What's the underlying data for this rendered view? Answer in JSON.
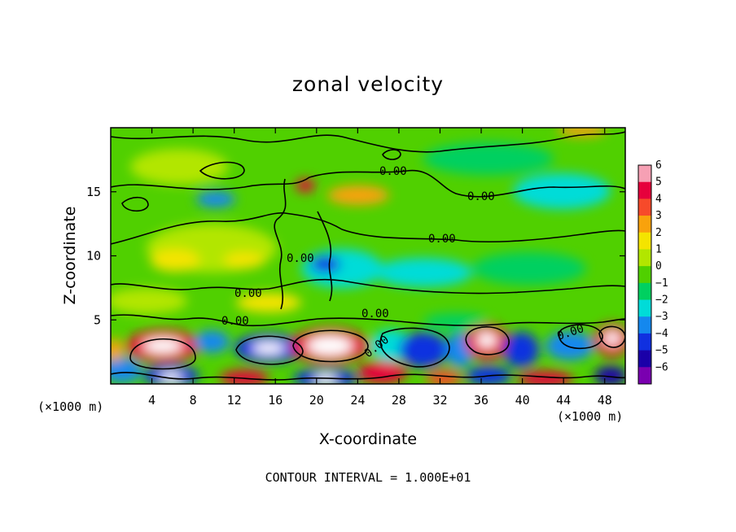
{
  "chart_data": {
    "type": "heatmap",
    "title": "zonal velocity",
    "xlabel": "X-coordinate",
    "ylabel": "Z-coordinate",
    "x_unit_left": "(×1000 m)",
    "x_unit_right": "(×1000 m)",
    "xlim": [
      0,
      50
    ],
    "ylim": [
      0,
      20
    ],
    "xticks": [
      4,
      8,
      12,
      16,
      20,
      24,
      28,
      32,
      36,
      40,
      44,
      48
    ],
    "yticks": [
      5,
      10,
      15
    ],
    "colorbar": {
      "levels": [
        6,
        5,
        4,
        3,
        2,
        1,
        0,
        -1,
        -2,
        -3,
        -4,
        -5,
        -6
      ],
      "labels": [
        "6",
        "5",
        "4",
        "3",
        "2",
        "1",
        "0",
        "−1",
        "−2",
        "−3",
        "−4",
        "−5",
        "−6"
      ],
      "colors": [
        "#f6a0b4",
        "#e6003c",
        "#f74a2a",
        "#f9a20c",
        "#f4e400",
        "#b2e600",
        "#50d000",
        "#00d060",
        "#00dcd8",
        "#1488ee",
        "#1030e0",
        "#1a00a8",
        "#7a00b0"
      ]
    },
    "contour_interval_text": "CONTOUR INTERVAL = 1.000E+01",
    "contour_level_label": "0.00",
    "grid": false,
    "legend": "colorbar-right"
  }
}
